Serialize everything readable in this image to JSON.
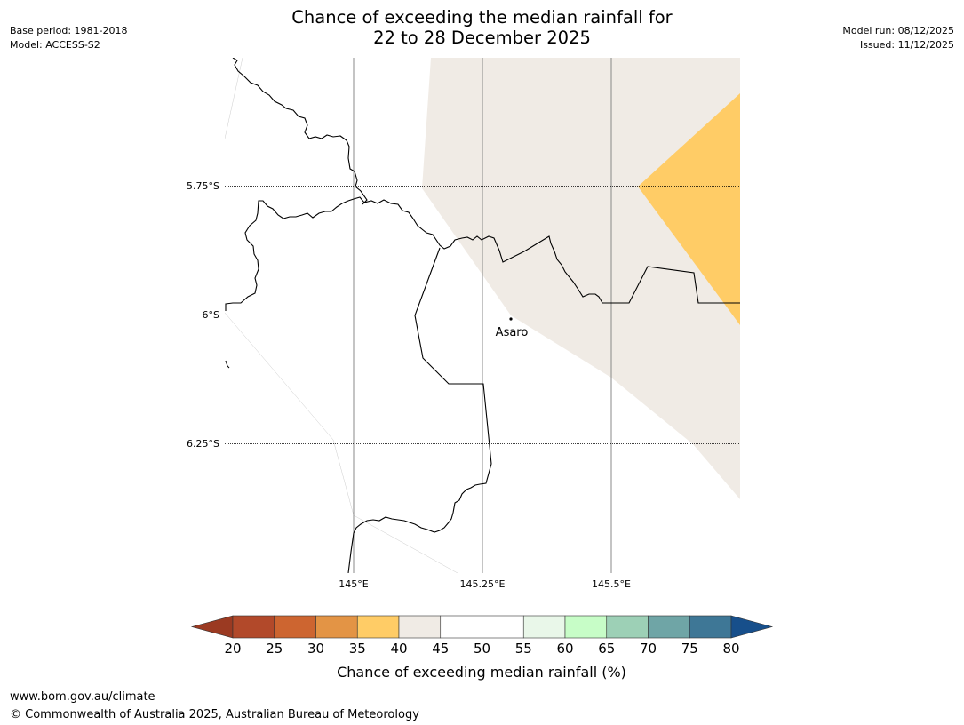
{
  "header": {
    "title_line1": "Chance of exceeding the median rainfall for",
    "title_line2": "22 to 28 December 2025",
    "base_period": "Base period: 1981-2018",
    "model": "Model: ACCESS-S2",
    "model_run": "Model run: 08/12/2025",
    "issued": "Issued: 11/12/2025"
  },
  "map": {
    "latitude_labels": [
      "5.75°S",
      "6°S",
      "6.25°S"
    ],
    "longitude_labels": [
      "145°E",
      "145.25°E",
      "145.5°E"
    ],
    "place_name": "Asaro",
    "category_colors": {
      "35-40": "#ffcc66",
      "40-45": "#f0ebe5",
      "45-55": "#ffffff"
    }
  },
  "colorbar": {
    "tick_labels": [
      "20",
      "25",
      "30",
      "35",
      "40",
      "45",
      "50",
      "55",
      "60",
      "65",
      "70",
      "75",
      "80"
    ],
    "colors": [
      "#9b3a22",
      "#b2492a",
      "#cd6530",
      "#e39445",
      "#ffcc66",
      "#f0ebe5",
      "#ffffff",
      "#ffffff",
      "#e9f7e9",
      "#c7fdc7",
      "#9dd0b6",
      "#6fa5a6",
      "#3e7796",
      "#174f8b"
    ],
    "title": "Chance of exceeding median rainfall (%)"
  },
  "footer": {
    "website": "www.bom.gov.au/climate",
    "copyright": "© Commonwealth of Australia 2025, Australian Bureau of Meteorology"
  }
}
